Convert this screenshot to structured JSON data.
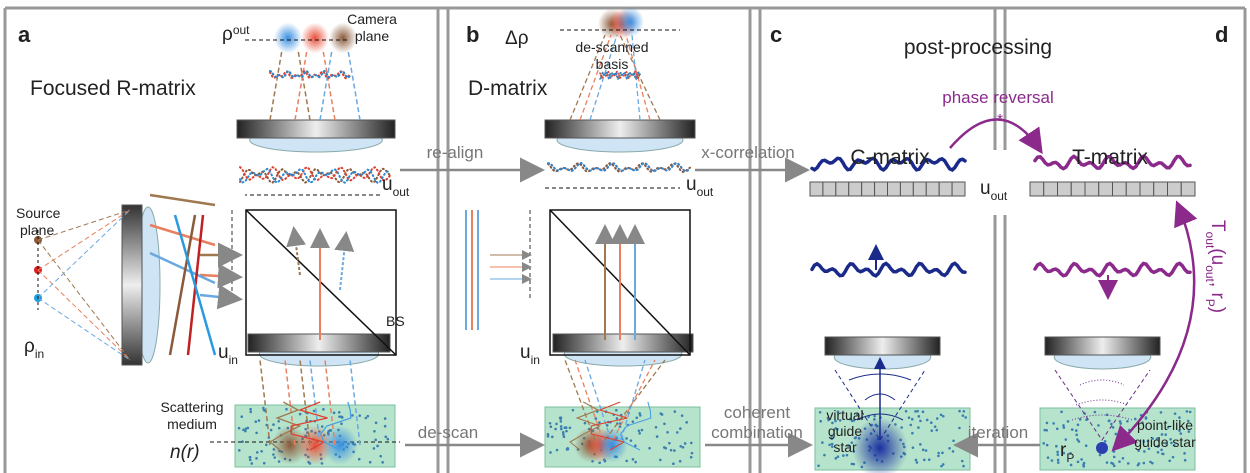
{
  "panel_labels": [
    "a",
    "b",
    "c",
    "d"
  ],
  "headings": {
    "r_matrix": "Focused R-matrix",
    "d_matrix": "D-matrix",
    "post_processing": "post-processing",
    "c_matrix": "C-matrix",
    "t_matrix": "T-matrix"
  },
  "labels": {
    "camera_plane": [
      "Camera",
      "plane"
    ],
    "de_scanned_basis": [
      "de-scanned",
      "basis"
    ],
    "source_plane": [
      "Source",
      "plane"
    ],
    "bs": "BS",
    "scattering_medium": [
      "Scattering",
      "medium"
    ],
    "refractive_index": "n(r)",
    "virtual_guide_star": [
      "virtual",
      "guide",
      "star"
    ],
    "point_like_guide_star": [
      "point-like",
      "guide star"
    ],
    "delta_rho": "Δρ"
  },
  "arrows": {
    "re_align": "re-align",
    "x_correlation": "x-correlation",
    "de_scan": "de-scan",
    "coherent_combination": [
      "coherent",
      "combination"
    ],
    "iteration": "iteration",
    "phase_reversal": "phase reversal",
    "conjugate": "*"
  },
  "symbols": {
    "rho_out": [
      {
        "text": "ρ"
      },
      {
        "sub": "out"
      }
    ],
    "rho_in": [
      {
        "text": "ρ"
      },
      {
        "sub": "in"
      }
    ],
    "u_out_a": [
      {
        "text": "u"
      },
      {
        "sub": "out"
      }
    ],
    "u_out_b": [
      {
        "text": "u"
      },
      {
        "sub": "out"
      }
    ],
    "u_out_c": [
      {
        "text": "u"
      },
      {
        "sub": "out"
      }
    ],
    "u_in_a": [
      {
        "text": "u"
      },
      {
        "sub": "in"
      }
    ],
    "u_in_b": [
      {
        "text": "u"
      },
      {
        "sub": "in"
      }
    ],
    "r_p": [
      {
        "text": "r"
      },
      {
        "sub": "P"
      }
    ],
    "t_out": [
      {
        "text": "T"
      },
      {
        "sub": "out"
      },
      {
        "text": "(u"
      },
      {
        "sub": "out"
      },
      {
        "text": ", r"
      },
      {
        "sub": "P"
      },
      {
        "text": ")"
      }
    ]
  }
}
